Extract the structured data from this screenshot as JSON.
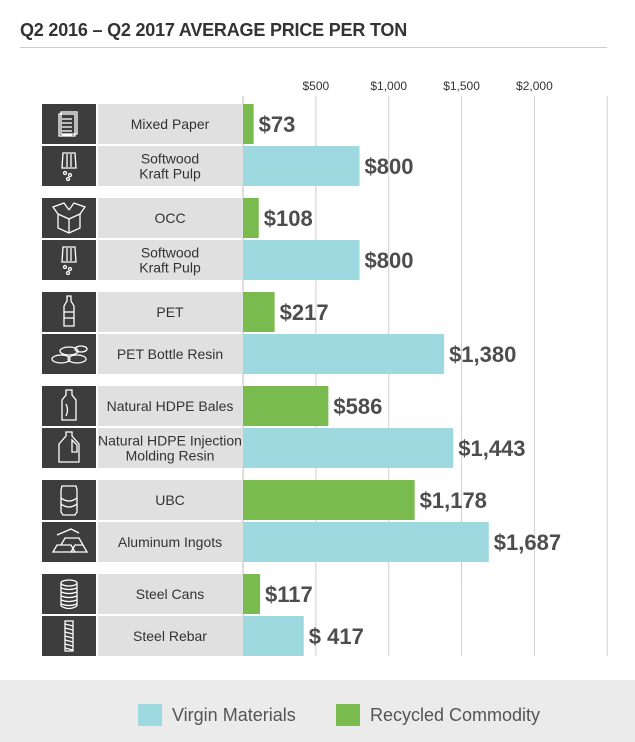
{
  "title": "Q2 2016 – Q2 2017 AVERAGE PRICE PER TON",
  "colors": {
    "virgin": "#9fd9e0",
    "recycled": "#79bb4f",
    "icon_bg": "#3d3d3d",
    "label_bg": "#e0e0e0"
  },
  "legend": [
    {
      "label": "Virgin Materials",
      "color": "#9fd9e0"
    },
    {
      "label": "Recycled Commodity",
      "color": "#79bb4f"
    }
  ],
  "chart_data": {
    "type": "bar",
    "orientation": "horizontal",
    "title": "Q2 2016 – Q2 2017 AVERAGE PRICE PER TON",
    "xlim": [
      0,
      2500
    ],
    "x_ticks": [
      500,
      1000,
      1500,
      2000
    ],
    "x_tick_labels": [
      "$500",
      "$1,000",
      "$1,500",
      "$2,000"
    ],
    "grid": true,
    "legend_position": "bottom",
    "bars": [
      {
        "label": "Mixed Paper",
        "value": 73,
        "value_label": "$73",
        "series": "Recycled Commodity",
        "icon": "paper-stack-icon"
      },
      {
        "label": "Softwood\nKraft Pulp",
        "value": 800,
        "value_label": "$800",
        "series": "Virgin Materials",
        "icon": "wood-pulp-icon"
      },
      {
        "label": "OCC",
        "value": 108,
        "value_label": "$108",
        "series": "Recycled Commodity",
        "icon": "cardboard-box-icon"
      },
      {
        "label": "Softwood\nKraft Pulp",
        "value": 800,
        "value_label": "$800",
        "series": "Virgin Materials",
        "icon": "wood-pulp-icon"
      },
      {
        "label": "PET",
        "value": 217,
        "value_label": "$217",
        "series": "Recycled Commodity",
        "icon": "plastic-bottle-icon"
      },
      {
        "label": "PET Bottle Resin",
        "value": 1380,
        "value_label": "$1,380",
        "series": "Virgin Materials",
        "icon": "resin-pellets-icon"
      },
      {
        "label": "Natural HDPE Bales",
        "value": 586,
        "value_label": "$586",
        "series": "Recycled Commodity",
        "icon": "hdpe-bottle-icon"
      },
      {
        "label": "Natural HDPE Injection\nMolding Resin",
        "value": 1443,
        "value_label": "$1,443",
        "series": "Virgin Materials",
        "icon": "milk-jug-icon"
      },
      {
        "label": "UBC",
        "value": 1178,
        "value_label": "$1,178",
        "series": "Recycled Commodity",
        "icon": "soda-can-icon"
      },
      {
        "label": "Aluminum Ingots",
        "value": 1687,
        "value_label": "$1,687",
        "series": "Virgin Materials",
        "icon": "ingot-stack-icon"
      },
      {
        "label": "Steel Cans",
        "value": 117,
        "value_label": "$117",
        "series": "Recycled Commodity",
        "icon": "steel-can-icon"
      },
      {
        "label": "Steel Rebar",
        "value": 417,
        "value_label": "$ 417",
        "series": "Virgin Materials",
        "icon": "rebar-icon"
      }
    ]
  }
}
